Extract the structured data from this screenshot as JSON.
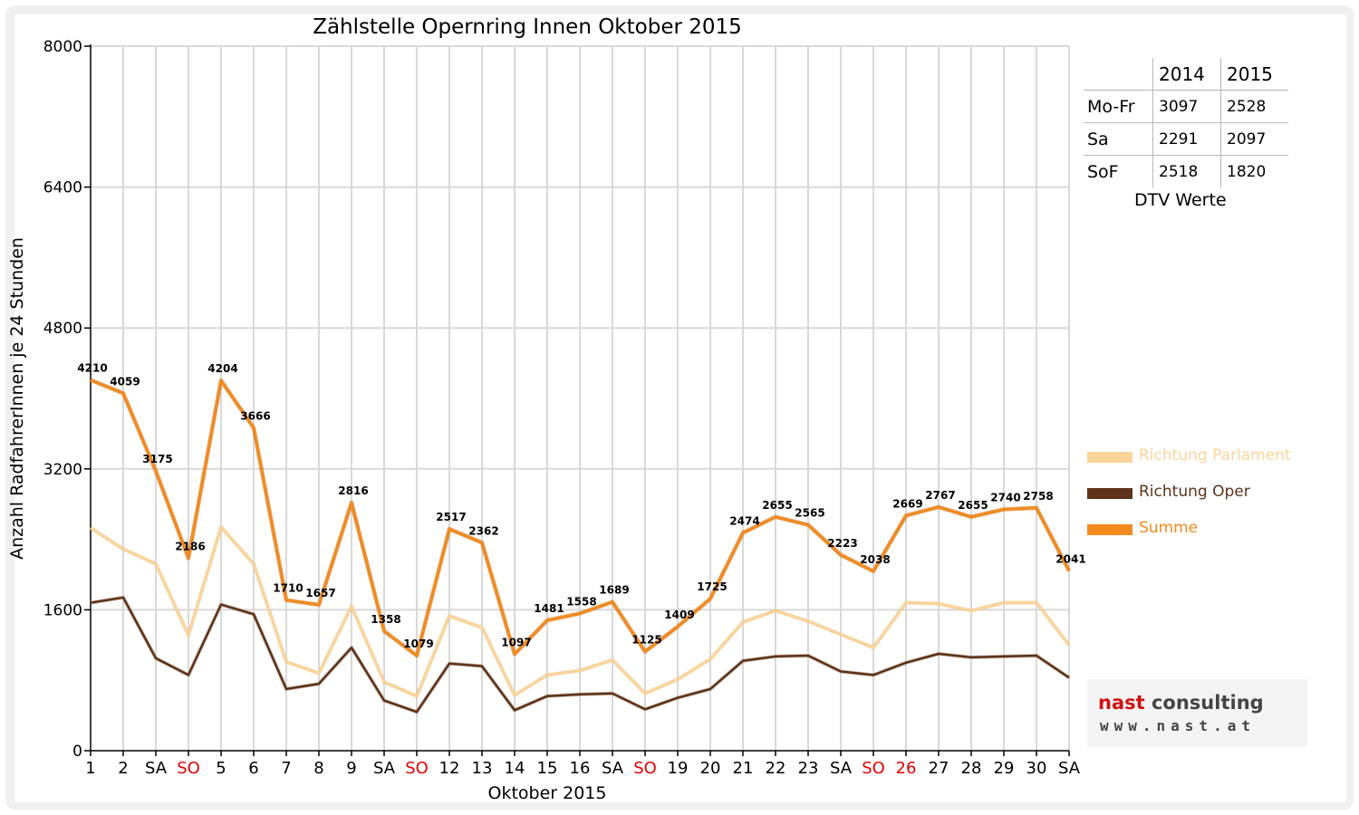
{
  "chart_data": {
    "type": "line",
    "title": "Zählstelle Opernring Innen Oktober 2015",
    "xlabel": "Oktober 2015",
    "ylabel": "Anzahl RadfahrerInnen je 24 Stunden",
    "ylim": [
      0,
      8000
    ],
    "yticks": [
      0,
      1600,
      3200,
      4800,
      6400,
      8000
    ],
    "grid": true,
    "legend_position": "right",
    "categories": [
      "1",
      "2",
      "SA",
      "SO",
      "5",
      "6",
      "7",
      "8",
      "9",
      "SA",
      "SO",
      "12",
      "13",
      "14",
      "15",
      "16",
      "SA",
      "SO",
      "19",
      "20",
      "21",
      "22",
      "23",
      "SA",
      "SO",
      "26",
      "27",
      "28",
      "29",
      "30",
      "SA"
    ],
    "highlight_categories": [
      3,
      10,
      17,
      24,
      25
    ],
    "highlight_color": "#e00000",
    "series": [
      {
        "name": "Richtung Parlament",
        "color": "#fbd49a",
        "values": [
          2530,
          2290,
          2120,
          1310,
          2540,
          2120,
          1010,
          880,
          1640,
          780,
          620,
          1530,
          1400,
          630,
          860,
          910,
          1030,
          650,
          810,
          1040,
          1460,
          1590,
          1470,
          1320,
          1170,
          1680,
          1670,
          1590,
          1680,
          1680,
          1200
        ]
      },
      {
        "name": "Richtung Oper",
        "color": "#5c331a",
        "values": [
          1680,
          1740,
          1050,
          860,
          1660,
          1550,
          700,
          760,
          1170,
          570,
          440,
          990,
          960,
          460,
          620,
          640,
          650,
          470,
          600,
          700,
          1020,
          1070,
          1080,
          900,
          860,
          1000,
          1100,
          1060,
          1070,
          1080,
          830
        ]
      },
      {
        "name": "Summe",
        "color": "#f28a1e",
        "values": [
          4210,
          4059,
          3175,
          2186,
          4204,
          3666,
          1710,
          1657,
          2816,
          1358,
          1079,
          2517,
          2362,
          1097,
          1481,
          1558,
          1689,
          1125,
          1409,
          1725,
          2474,
          2655,
          2565,
          2223,
          2038,
          2669,
          2767,
          2655,
          2740,
          2758,
          2041
        ]
      }
    ]
  },
  "dtv_table": {
    "caption": "DTV Werte",
    "headers": [
      "",
      "2014",
      "2015"
    ],
    "rows": [
      {
        "label": "Mo-Fr",
        "y2014": "3097",
        "y2015": "2528"
      },
      {
        "label": "Sa",
        "y2014": "2291",
        "y2015": "2097"
      },
      {
        "label": "SoF",
        "y2014": "2518",
        "y2015": "1820"
      }
    ]
  },
  "logo": {
    "name_part1": "nast",
    "name_part2": "consulting",
    "url": "www.nast.at",
    "accent_color": "#d01010"
  }
}
